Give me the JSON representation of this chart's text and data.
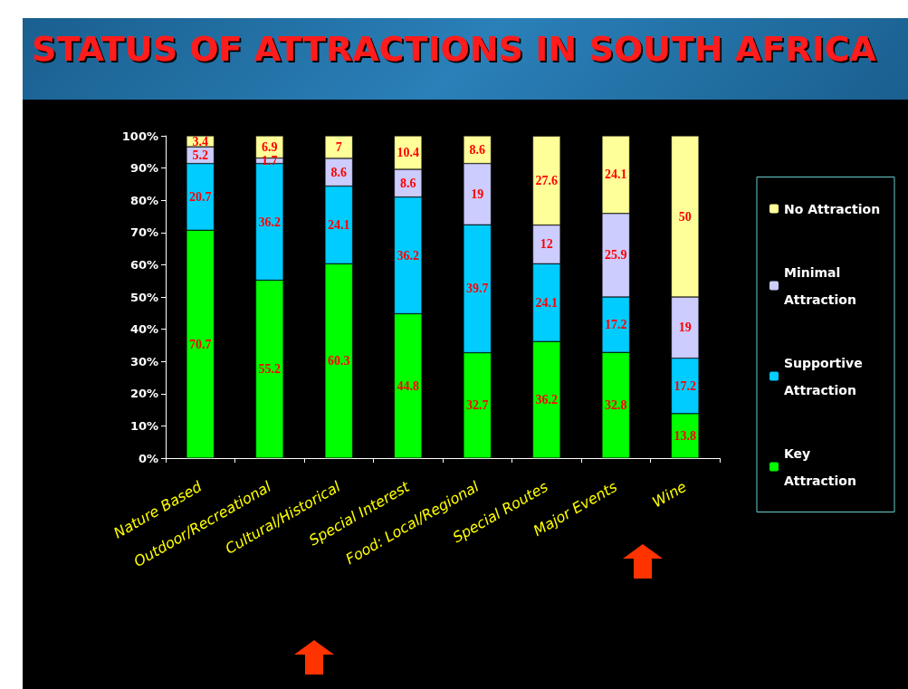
{
  "chart_data": {
    "type": "bar",
    "title": "STATUS OF ATTRACTIONS IN SOUTH AFRICA",
    "stacked": true,
    "data_labels": true,
    "legend": "right",
    "grid": false,
    "categories": [
      "Nature Based",
      "Outdoor/Recreational",
      "Cultural/Historical",
      "Special Interest",
      "Food: Local/Regional",
      "Special Routes",
      "Major Events",
      "Wine"
    ],
    "ylim": [
      0,
      100
    ],
    "yticks": [
      {
        "value": 0,
        "label": "0%"
      },
      {
        "value": 10,
        "label": "10%"
      },
      {
        "value": 20,
        "label": "20%"
      },
      {
        "value": 30,
        "label": "30%"
      },
      {
        "value": 40,
        "label": "40%"
      },
      {
        "value": 50,
        "label": "50%"
      },
      {
        "value": 60,
        "label": "60%"
      },
      {
        "value": 70,
        "label": "70%"
      },
      {
        "value": 80,
        "label": "80%"
      },
      {
        "value": 90,
        "label": "90%"
      },
      {
        "value": 100,
        "label": "100%"
      }
    ],
    "series": [
      {
        "name": "Key Attraction",
        "color": "#00ff00",
        "values": [
          70.7,
          55.2,
          60.3,
          44.8,
          32.7,
          36.2,
          32.8,
          13.8
        ]
      },
      {
        "name": "Supportive Attraction",
        "color": "#00ccff",
        "values": [
          20.7,
          36.2,
          24.1,
          36.2,
          39.7,
          24.1,
          17.2,
          17.2
        ]
      },
      {
        "name": "Minimal Attraction",
        "color": "#ccccff",
        "values": [
          5.2,
          1.7,
          8.6,
          8.6,
          19,
          12,
          25.9,
          19
        ]
      },
      {
        "name": "No Attraction",
        "color": "#ffff99",
        "values": [
          3.4,
          6.9,
          7,
          10.4,
          8.6,
          27.6,
          24.1,
          50
        ]
      }
    ]
  }
}
